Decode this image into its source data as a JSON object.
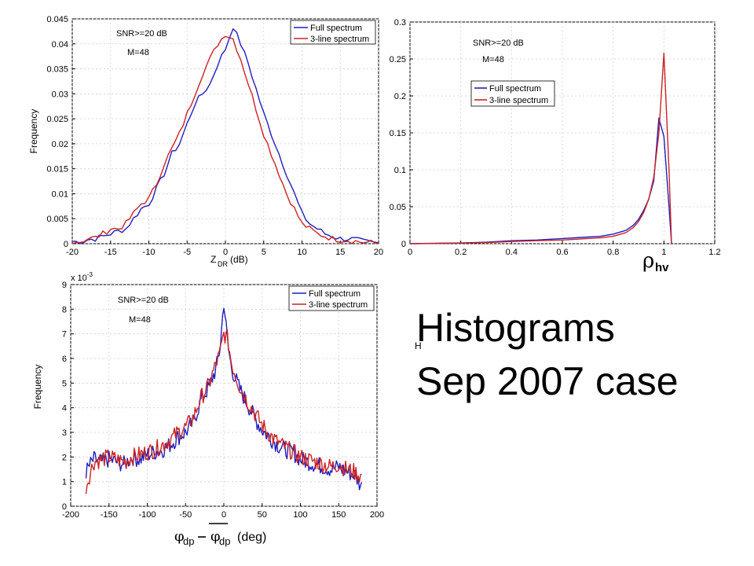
{
  "slide": {
    "title_line1": "Histograms",
    "title_line2": "Sep 2007 case",
    "stray_mark": "H"
  },
  "colors": {
    "full_spectrum": "#1f1fbf",
    "three_line": "#cc2222"
  },
  "chart_data": [
    {
      "type": "line",
      "ylabel": "Frequency",
      "xlabel_main": "Z",
      "xlabel_sub": "DR",
      "xlabel_tail": "(dB)",
      "xlim": [
        -20,
        20
      ],
      "ylim": [
        0,
        0.045
      ],
      "xticks": [
        -20,
        -15,
        -10,
        -5,
        0,
        5,
        10,
        15,
        20
      ],
      "xtick_labels": [
        "-20",
        "-15",
        "-10",
        "-5",
        "0",
        "5",
        "10",
        "15",
        "20"
      ],
      "yticks": [
        0,
        0.005,
        0.01,
        0.015,
        0.02,
        0.025,
        0.03,
        0.035,
        0.04,
        0.045
      ],
      "ytick_labels": [
        "0",
        "0.005",
        "0.01",
        "0.015",
        "0.02",
        "0.025",
        "0.03",
        "0.035",
        "0.04",
        "0.045"
      ],
      "annotations": [
        "SNR>=20 dB",
        "M=48"
      ],
      "legend": {
        "placement": "top-right",
        "entries": [
          "Full spectrum",
          "3-line spectrum"
        ]
      },
      "series": [
        {
          "name": "Full spectrum",
          "x": [
            -20,
            -19,
            -18,
            -17,
            -16,
            -15,
            -14,
            -13,
            -12,
            -11,
            -10,
            -9,
            -8,
            -7,
            -6,
            -5,
            -4,
            -3,
            -2,
            -1,
            0,
            1,
            2,
            3,
            4,
            5,
            6,
            7,
            8,
            9,
            10,
            11,
            12,
            13,
            14,
            15,
            16,
            17,
            18,
            19,
            20
          ],
          "y": [
            0.0005,
            0.0003,
            0.0008,
            0.001,
            0.0015,
            0.002,
            0.0025,
            0.003,
            0.005,
            0.007,
            0.008,
            0.011,
            0.014,
            0.018,
            0.02,
            0.024,
            0.028,
            0.03,
            0.032,
            0.036,
            0.039,
            0.0435,
            0.04,
            0.036,
            0.031,
            0.026,
            0.022,
            0.018,
            0.014,
            0.01,
            0.006,
            0.004,
            0.003,
            0.002,
            0.0015,
            0.001,
            0.001,
            0.0008,
            0.0004,
            0.0002,
            0.0001
          ]
        },
        {
          "name": "3-line spectrum",
          "x": [
            -20,
            -19,
            -18,
            -17,
            -16,
            -15,
            -14,
            -13,
            -12,
            -11,
            -10,
            -9,
            -8,
            -7,
            -6,
            -5,
            -4,
            -3,
            -2,
            -1,
            0,
            1,
            2,
            3,
            4,
            5,
            6,
            7,
            8,
            9,
            10,
            11,
            12,
            13,
            14,
            15,
            16,
            17,
            18,
            19,
            20
          ],
          "y": [
            0.0005,
            0.0004,
            0.001,
            0.0012,
            0.002,
            0.003,
            0.003,
            0.004,
            0.006,
            0.008,
            0.009,
            0.012,
            0.016,
            0.019,
            0.022,
            0.026,
            0.03,
            0.034,
            0.037,
            0.04,
            0.042,
            0.041,
            0.037,
            0.032,
            0.027,
            0.022,
            0.018,
            0.014,
            0.01,
            0.007,
            0.004,
            0.003,
            0.002,
            0.0015,
            0.001,
            0.0008,
            0.0007,
            0.0005,
            0.0003,
            0.0002,
            0.0001
          ]
        }
      ]
    },
    {
      "type": "line",
      "xlabel_symbol": "ρ",
      "xlabel_sub": "hv",
      "xlim": [
        0,
        1.2
      ],
      "ylim": [
        0,
        0.3
      ],
      "xticks": [
        0,
        0.2,
        0.4,
        0.6,
        0.8,
        1,
        1.2
      ],
      "xtick_labels": [
        "0",
        "0.2",
        "0.4",
        "0.6",
        "0.8",
        "1",
        "1.2"
      ],
      "yticks": [
        0,
        0.05,
        0.1,
        0.15,
        0.2,
        0.25,
        0.3
      ],
      "ytick_labels": [
        "0",
        "0.05",
        "0.1",
        "0.15",
        "0.2",
        "0.25",
        "0.3"
      ],
      "annotations": [
        "SNR>=20 dB",
        "M=48"
      ],
      "legend": {
        "placement": "upper-middle",
        "entries": [
          "Full spectrum",
          "3-line spectrum"
        ]
      },
      "series": [
        {
          "name": "Full spectrum",
          "x": [
            0,
            0.1,
            0.2,
            0.3,
            0.4,
            0.5,
            0.6,
            0.65,
            0.7,
            0.75,
            0.8,
            0.85,
            0.88,
            0.9,
            0.92,
            0.94,
            0.96,
            0.98,
            1.0,
            1.02,
            1.03
          ],
          "y": [
            0,
            0.0005,
            0.001,
            0.002,
            0.004,
            0.005,
            0.007,
            0.008,
            0.009,
            0.01,
            0.013,
            0.018,
            0.025,
            0.033,
            0.045,
            0.06,
            0.085,
            0.17,
            0.145,
            0.05,
            0
          ]
        },
        {
          "name": "3-line spectrum",
          "x": [
            0,
            0.1,
            0.2,
            0.3,
            0.4,
            0.5,
            0.6,
            0.65,
            0.7,
            0.75,
            0.8,
            0.85,
            0.88,
            0.9,
            0.92,
            0.94,
            0.96,
            0.98,
            1.0,
            1.02,
            1.03
          ],
          "y": [
            0,
            0.0003,
            0.0008,
            0.0015,
            0.003,
            0.004,
            0.005,
            0.006,
            0.007,
            0.008,
            0.01,
            0.015,
            0.022,
            0.03,
            0.042,
            0.06,
            0.09,
            0.15,
            0.258,
            0.1,
            0
          ]
        }
      ]
    },
    {
      "type": "line",
      "ylabel": "Frequency",
      "y_multiplier": "x 10",
      "y_multiplier_exp": "-3",
      "xlabel_symbol": "φ",
      "xlabel_sub": "dp",
      "xlabel_tail": "(deg)",
      "xlim": [
        -200,
        200
      ],
      "ylim": [
        0,
        9
      ],
      "xticks": [
        -200,
        -150,
        -100,
        -50,
        0,
        50,
        100,
        150,
        200
      ],
      "xtick_labels": [
        "-200",
        "-150",
        "-100",
        "-50",
        "0",
        "50",
        "100",
        "150",
        "200"
      ],
      "yticks": [
        0,
        1,
        2,
        3,
        4,
        5,
        6,
        7,
        8,
        9
      ],
      "ytick_labels": [
        "0",
        "1",
        "2",
        "3",
        "4",
        "5",
        "6",
        "7",
        "8",
        "9"
      ],
      "annotations": [
        "SNR>=20 dB",
        "M=48"
      ],
      "legend": {
        "placement": "top-right",
        "entries": [
          "Full spectrum",
          "3-line spectrum"
        ]
      },
      "series": [
        {
          "name": "Full spectrum",
          "x": [
            -180,
            -170,
            -160,
            -150,
            -140,
            -130,
            -120,
            -110,
            -100,
            -90,
            -80,
            -70,
            -60,
            -50,
            -40,
            -30,
            -20,
            -10,
            -5,
            0,
            5,
            10,
            20,
            30,
            40,
            50,
            60,
            70,
            80,
            90,
            100,
            110,
            120,
            130,
            140,
            150,
            160,
            170,
            180
          ],
          "y": [
            1.4,
            1.9,
            1.8,
            1.9,
            1.8,
            1.7,
            2.0,
            1.9,
            2.1,
            2.2,
            2.3,
            2.5,
            2.8,
            3.0,
            3.4,
            4.3,
            4.8,
            5.6,
            6.4,
            8.3,
            6.6,
            5.6,
            4.8,
            4.2,
            3.6,
            3.1,
            2.8,
            2.5,
            2.3,
            2.2,
            1.9,
            1.8,
            1.7,
            1.6,
            1.5,
            1.6,
            1.4,
            1.3,
            0.8
          ]
        },
        {
          "name": "3-line spectrum",
          "x": [
            -180,
            -170,
            -160,
            -150,
            -140,
            -130,
            -120,
            -110,
            -100,
            -90,
            -80,
            -70,
            -60,
            -50,
            -40,
            -30,
            -20,
            -10,
            -5,
            0,
            5,
            10,
            20,
            30,
            40,
            50,
            60,
            70,
            80,
            90,
            100,
            110,
            120,
            130,
            140,
            150,
            160,
            170,
            180
          ],
          "y": [
            0.8,
            1.8,
            1.9,
            2.0,
            1.9,
            1.8,
            2.0,
            2.1,
            2.2,
            2.3,
            2.5,
            2.7,
            3.0,
            3.2,
            3.6,
            4.4,
            4.9,
            5.8,
            6.2,
            7.0,
            6.8,
            5.8,
            4.9,
            4.3,
            3.8,
            3.3,
            2.9,
            2.6,
            2.4,
            2.2,
            2.0,
            1.9,
            1.8,
            1.7,
            1.6,
            1.7,
            1.5,
            1.4,
            1.2
          ]
        }
      ]
    }
  ]
}
